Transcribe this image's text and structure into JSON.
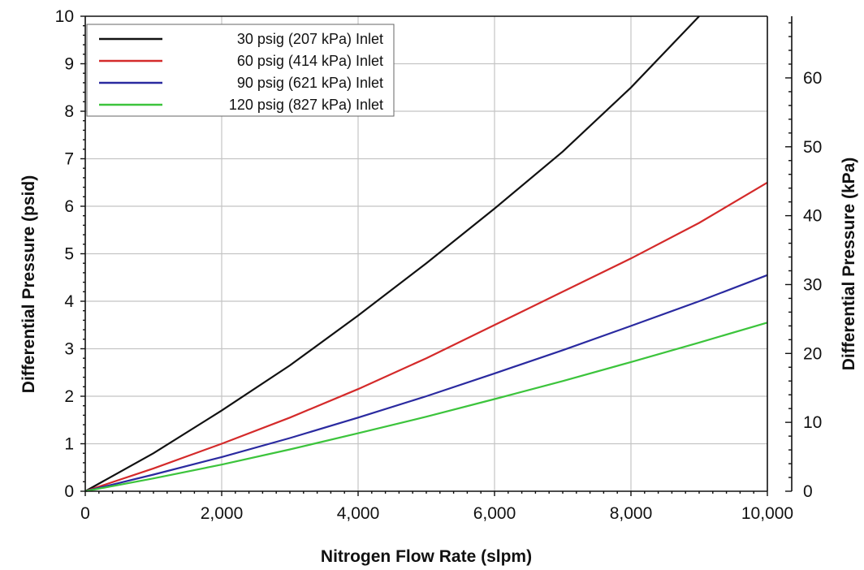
{
  "chart_data": {
    "type": "line",
    "title": "",
    "xlabel": "Nitrogen Flow Rate (slpm)",
    "ylabel": "Differential Pressure (psid)",
    "y2label": "Differential Pressure (kPa)",
    "xlim": [
      0,
      10000
    ],
    "ylim": [
      0,
      10
    ],
    "y2lim": [
      0,
      68.95
    ],
    "x_ticks": [
      0,
      2000,
      4000,
      6000,
      8000,
      10000
    ],
    "x_tick_labels": [
      "0",
      "2,000",
      "4,000",
      "6,000",
      "8,000",
      "10,000"
    ],
    "y_ticks": [
      0,
      1,
      2,
      3,
      4,
      5,
      6,
      7,
      8,
      9,
      10
    ],
    "y_tick_labels": [
      "0",
      "1",
      "2",
      "3",
      "4",
      "5",
      "6",
      "7",
      "8",
      "9",
      "10"
    ],
    "y2_ticks": [
      0,
      10,
      20,
      30,
      40,
      50,
      60
    ],
    "y2_tick_labels": [
      "0",
      "10",
      "20",
      "30",
      "40",
      "50",
      "60"
    ],
    "grid": true,
    "legend_position": "top-left",
    "series": [
      {
        "name": "30 psig (207 kPa) Inlet",
        "color": "#111111",
        "x": [
          0,
          1000,
          2000,
          3000,
          4000,
          5000,
          6000,
          7000,
          8000,
          9000
        ],
        "y": [
          0,
          0.8,
          1.7,
          2.65,
          3.7,
          4.8,
          5.95,
          7.15,
          8.5,
          10.0
        ]
      },
      {
        "name": "60 psig (414 kPa) Inlet",
        "color": "#d42a2a",
        "x": [
          0,
          1000,
          2000,
          3000,
          4000,
          5000,
          6000,
          7000,
          8000,
          9000,
          10000
        ],
        "y": [
          0,
          0.48,
          1.0,
          1.55,
          2.15,
          2.8,
          3.5,
          4.2,
          4.9,
          5.65,
          6.5
        ]
      },
      {
        "name": "90 psig (621 kPa) Inlet",
        "color": "#2a2aa0",
        "x": [
          0,
          1000,
          2000,
          3000,
          4000,
          5000,
          6000,
          7000,
          8000,
          9000,
          10000
        ],
        "y": [
          0,
          0.35,
          0.72,
          1.12,
          1.55,
          2.0,
          2.48,
          2.97,
          3.48,
          4.0,
          4.55
        ]
      },
      {
        "name": "120 psig (827 kPa) Inlet",
        "color": "#3cc43c",
        "x": [
          0,
          1000,
          2000,
          3000,
          4000,
          5000,
          6000,
          7000,
          8000,
          9000,
          10000
        ],
        "y": [
          0,
          0.27,
          0.56,
          0.88,
          1.22,
          1.57,
          1.94,
          2.32,
          2.72,
          3.13,
          3.55
        ]
      }
    ]
  }
}
